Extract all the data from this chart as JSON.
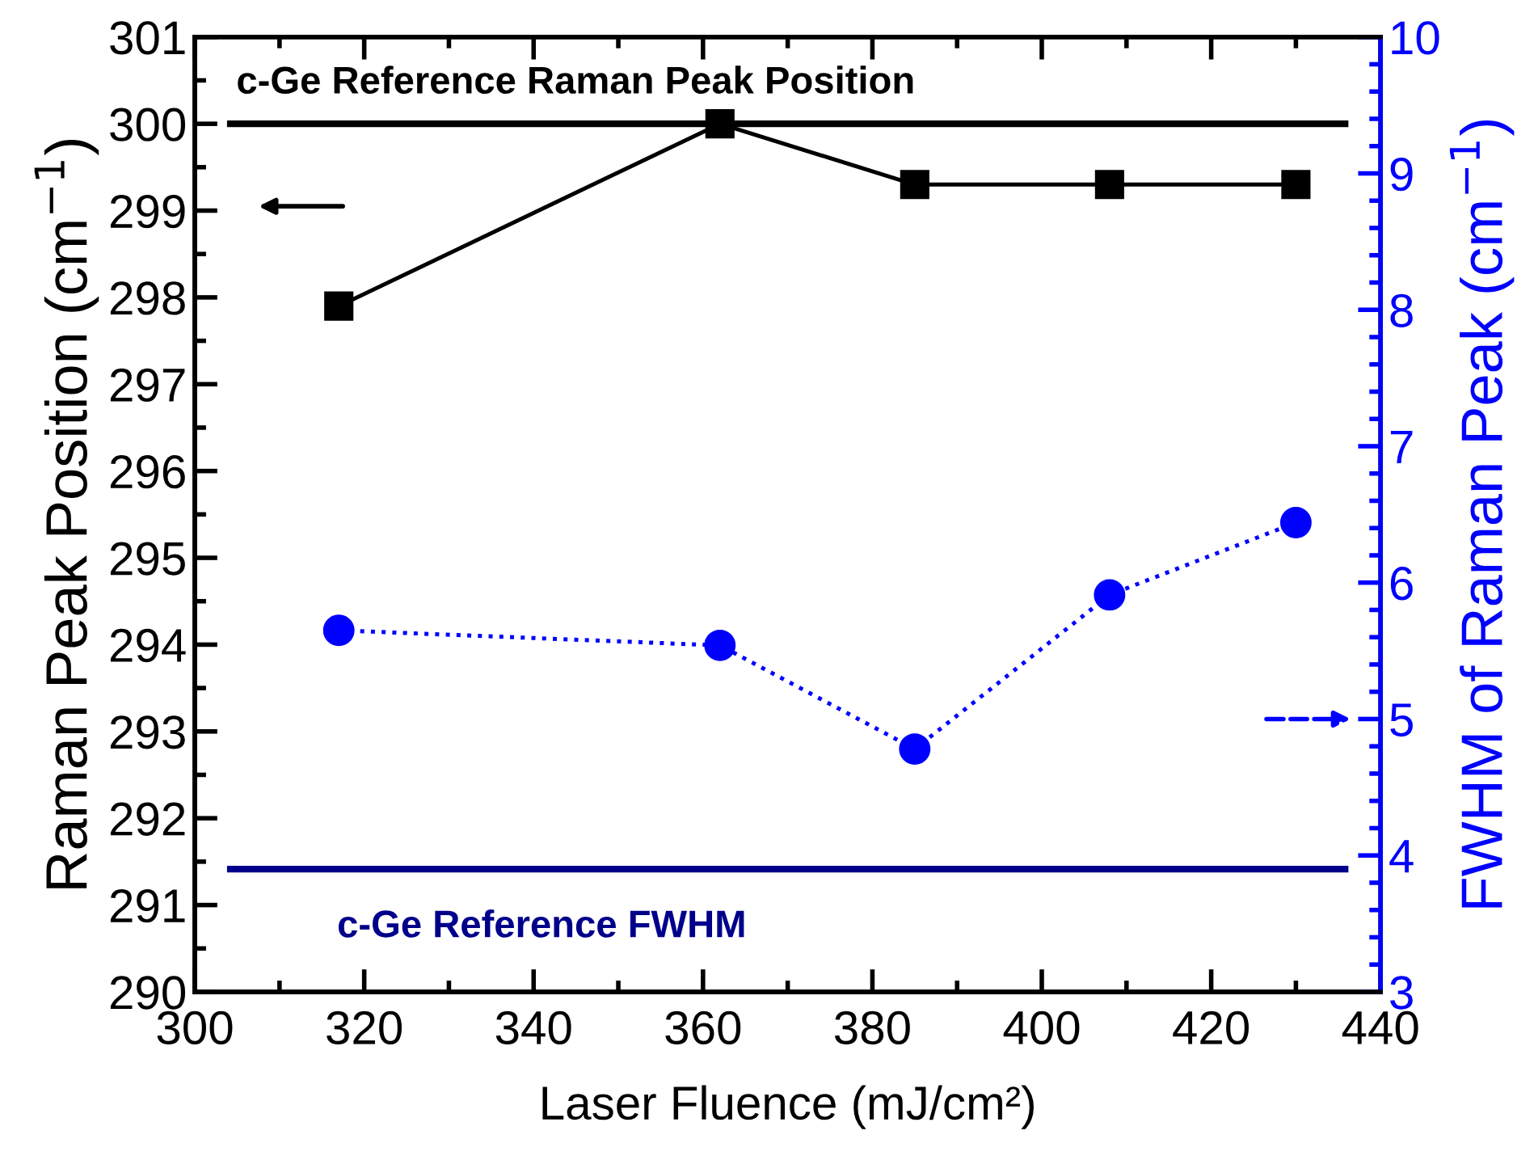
{
  "chart_data": {
    "type": "line",
    "xlabel": "Laser Fluence (mJ/cm²)",
    "ylabel": "Raman Peak Position (cm$^{−1}$)",
    "y2label": "FWHM of Raman Peak (cm$^{−1}$)",
    "x": [
      317,
      362,
      385,
      408,
      430
    ],
    "series": [
      {
        "color": "#000000",
        "values": [
          297.9,
          300.0,
          299.3,
          299.3,
          299.3
        ],
        "marker": "square",
        "line_style": "solid"
      },
      {
        "color": "#0000ff",
        "values": [
          5.65,
          5.54,
          4.78,
          5.91,
          6.44
        ],
        "marker": "circle",
        "line_style": "dotted",
        "axis": "y2"
      }
    ],
    "ref_lines": [
      {
        "axis": "y",
        "value": 300,
        "label": "c-Ge Reference Raman Peak Position",
        "color": "#000000",
        "line_style": "solid"
      },
      {
        "axis": "y2",
        "value": 3.9,
        "label": "c-Ge Reference FWHM",
        "color": "#00008b",
        "line_style": "solid"
      }
    ],
    "xlim": [
      300,
      440
    ],
    "xticks": [
      300,
      {
        "value": 310,
        "label": null
      },
      320,
      {
        "value": 330,
        "label": null
      },
      340,
      {
        "value": 350,
        "label": null
      },
      360,
      {
        "value": 370,
        "label": null
      },
      380,
      {
        "value": 390,
        "label": null
      },
      400,
      {
        "value": 410,
        "label": null
      },
      420,
      {
        "value": 430,
        "label": null
      },
      440
    ],
    "ylim": [
      290,
      301
    ],
    "yticks": [
      290,
      {
        "value": 290.5,
        "label": null
      },
      291,
      {
        "value": 291.5,
        "label": null
      },
      292,
      {
        "value": 292.5,
        "label": null
      },
      293,
      {
        "value": 293.5,
        "label": null
      },
      294,
      {
        "value": 294.5,
        "label": null
      },
      295,
      {
        "value": 295.5,
        "label": null
      },
      296,
      {
        "value": 296.5,
        "label": null
      },
      297,
      {
        "value": 297.5,
        "label": null
      },
      298,
      {
        "value": 298.5,
        "label": null
      },
      299,
      {
        "value": 299.5,
        "label": null
      },
      300,
      {
        "value": 300.5,
        "label": null
      },
      301
    ],
    "y2lim": [
      3,
      10
    ],
    "y2ticks": [
      3,
      {
        "value": 3.2,
        "label": null
      },
      {
        "value": 3.4,
        "label": null
      },
      {
        "value": 3.6,
        "label": null
      },
      {
        "value": 3.8,
        "label": null
      },
      4,
      {
        "value": 4.2,
        "label": null
      },
      {
        "value": 4.4,
        "label": null
      },
      {
        "value": 4.6,
        "label": null
      },
      {
        "value": 4.8,
        "label": null
      },
      5,
      {
        "value": 5.2,
        "label": null
      },
      {
        "value": 5.4,
        "label": null
      },
      {
        "value": 5.6,
        "label": null
      },
      {
        "value": 5.8,
        "label": null
      },
      6,
      {
        "value": 6.2,
        "label": null
      },
      {
        "value": 6.4,
        "label": null
      },
      {
        "value": 6.6,
        "label": null
      },
      {
        "value": 6.8,
        "label": null
      },
      7,
      {
        "value": 7.2,
        "label": null
      },
      {
        "value": 7.4,
        "label": null
      },
      {
        "value": 7.6,
        "label": null
      },
      {
        "value": 7.8,
        "label": null
      },
      8,
      {
        "value": 8.2,
        "label": null
      },
      {
        "value": 8.4,
        "label": null
      },
      {
        "value": 8.6,
        "label": null
      },
      {
        "value": 8.8,
        "label": null
      },
      9,
      {
        "value": 9.2,
        "label": null
      },
      {
        "value": 9.4,
        "label": null
      },
      {
        "value": 9.6,
        "label": null
      },
      {
        "value": 9.8,
        "label": null
      },
      10
    ],
    "grid": false
  }
}
